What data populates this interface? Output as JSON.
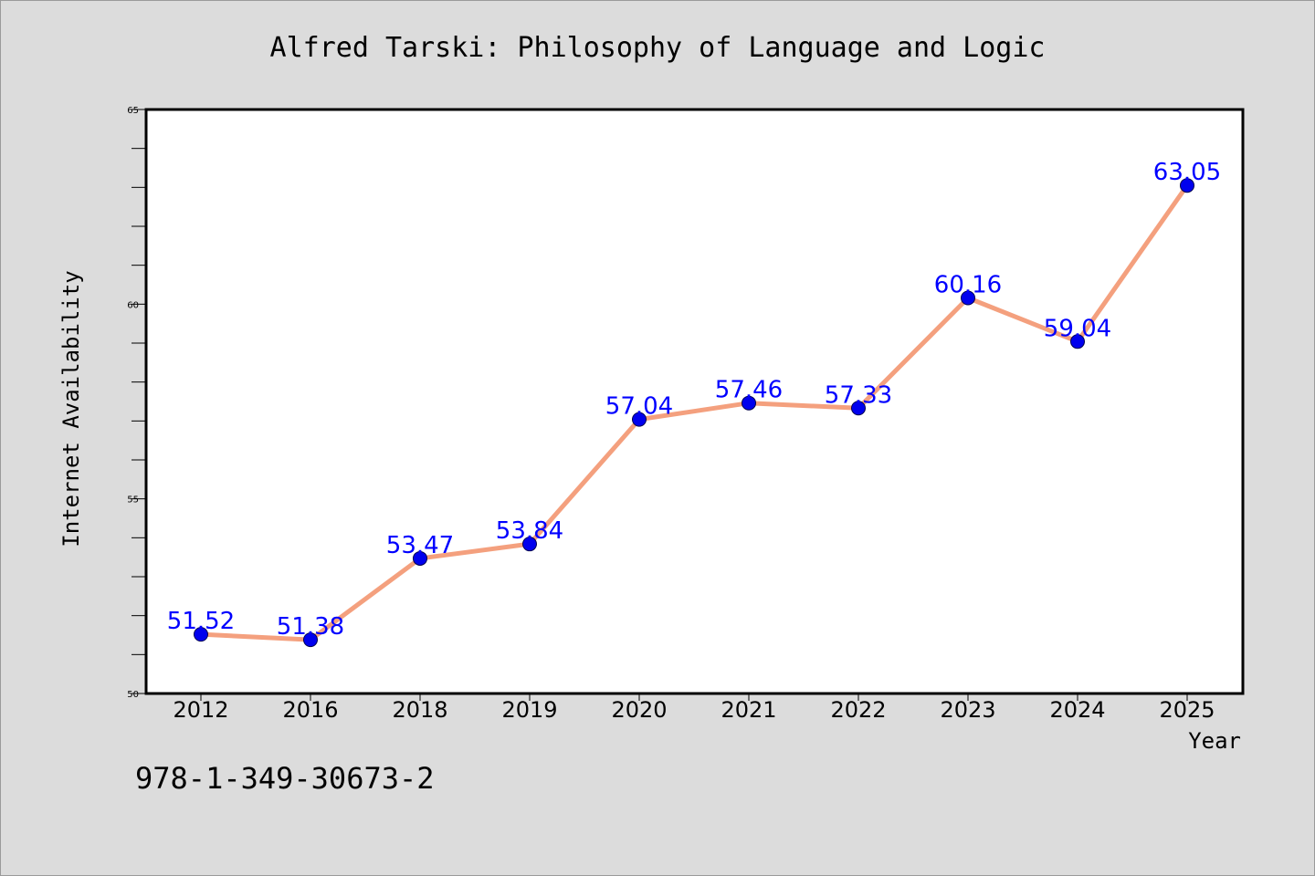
{
  "chart_data": {
    "type": "line",
    "title": "Alfred Tarski: Philosophy of Language and Logic",
    "xlabel": "Year",
    "ylabel": "Internet Availability",
    "categories": [
      "2012",
      "2016",
      "2018",
      "2019",
      "2020",
      "2021",
      "2022",
      "2023",
      "2024",
      "2025"
    ],
    "series": [
      {
        "values": [
          51.52,
          51.38,
          53.47,
          53.84,
          57.04,
          57.46,
          57.33,
          60.16,
          59.04,
          63.05
        ],
        "labels": [
          "51.52",
          "51.38",
          "53.47",
          "53.84",
          "57.04",
          "57.46",
          "57.33",
          "60.16",
          "59.04",
          "63.05"
        ]
      }
    ],
    "ylim": [
      50,
      65
    ],
    "yticks": [
      "50",
      "55",
      "60",
      "65"
    ],
    "grid": false,
    "legend": "none",
    "colors": {
      "line": "#f4a07e",
      "marker": "#0000ee",
      "data_label": "#0000ff",
      "plot_background": "#ffffff",
      "page_background": "#dcdcdc"
    }
  },
  "footer_text": "978-1-349-30673-2"
}
